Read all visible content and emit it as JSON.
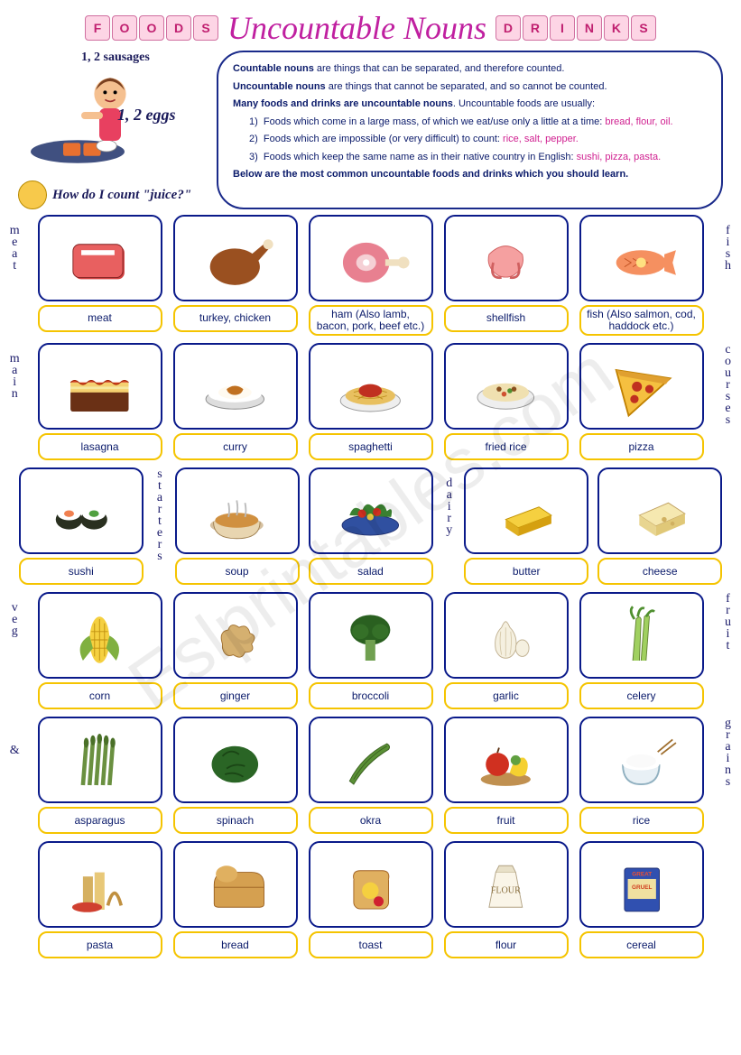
{
  "header": {
    "left_blocks": [
      "F",
      "O",
      "O",
      "D",
      "S"
    ],
    "title": "Uncountable Nouns",
    "right_blocks": [
      "D",
      "R",
      "I",
      "N",
      "K",
      "S"
    ]
  },
  "waitress": {
    "annot1": "1, 2 sausages",
    "annot2": "1, 2 eggs",
    "question": "How do I count \"juice?\""
  },
  "speech": {
    "line1_b": "Countable nouns",
    "line1": " are things that can be separated, and therefore counted.",
    "line2_b": "Uncountable nouns",
    "line2": " are things that cannot be separated, and so cannot be counted.",
    "line3_b": "Many foods and drinks are uncountable nouns",
    "line3": ". Uncountable foods are usually:",
    "item1": "Foods which come in a large mass, of which we eat/use only a little at a time: ",
    "item1_hl": "bread, flour, oil.",
    "item2": "Foods which are impossible (or very difficult) to count: ",
    "item2_hl": "rice, salt, pepper.",
    "item3": "Foods which keep the same name as in their native country in English: ",
    "item3_hl": "sushi, pizza, pasta.",
    "footer": "Below are the most common uncountable foods and drinks which you should learn."
  },
  "categories": {
    "r1_left": "meat",
    "r1_right": "fish",
    "r2_left": "main",
    "r2_right": "courses",
    "r3_mid1": "starters",
    "r3_mid2": "dairy",
    "r4_left": "veg",
    "r4_right": "fruit",
    "r5_amp": "&",
    "r5_right": "grains"
  },
  "rows": [
    [
      {
        "label": "meat",
        "icon": "meat"
      },
      {
        "label": "turkey, chicken",
        "icon": "chicken"
      },
      {
        "label": "ham (Also lamb, bacon, pork, beef etc.)",
        "icon": "ham"
      },
      {
        "label": "shellfish",
        "icon": "shellfish"
      },
      {
        "label": "fish (Also salmon, cod, haddock etc.)",
        "icon": "fish"
      }
    ],
    [
      {
        "label": "lasagna",
        "icon": "lasagna"
      },
      {
        "label": "curry",
        "icon": "curry"
      },
      {
        "label": "spaghetti",
        "icon": "spaghetti"
      },
      {
        "label": "fried rice",
        "icon": "friedrice"
      },
      {
        "label": "pizza",
        "icon": "pizza"
      }
    ],
    [
      {
        "label": "sushi",
        "icon": "sushi"
      },
      {
        "label": "soup",
        "icon": "soup"
      },
      {
        "label": "salad",
        "icon": "salad"
      },
      {
        "label": "butter",
        "icon": "butter"
      },
      {
        "label": "cheese",
        "icon": "cheese"
      }
    ],
    [
      {
        "label": "corn",
        "icon": "corn"
      },
      {
        "label": "ginger",
        "icon": "ginger"
      },
      {
        "label": "broccoli",
        "icon": "broccoli"
      },
      {
        "label": "garlic",
        "icon": "garlic"
      },
      {
        "label": "celery",
        "icon": "celery"
      }
    ],
    [
      {
        "label": "asparagus",
        "icon": "asparagus"
      },
      {
        "label": "spinach",
        "icon": "spinach"
      },
      {
        "label": "okra",
        "icon": "okra"
      },
      {
        "label": "fruit",
        "icon": "fruit"
      },
      {
        "label": "rice",
        "icon": "rice"
      }
    ],
    [
      {
        "label": "pasta",
        "icon": "pasta"
      },
      {
        "label": "bread",
        "icon": "bread"
      },
      {
        "label": "toast",
        "icon": "toast"
      },
      {
        "label": "flour",
        "icon": "flour"
      },
      {
        "label": "cereal",
        "icon": "cereal"
      }
    ]
  ],
  "colors": {
    "border_blue": "#0a1a8a",
    "border_yellow": "#f5c400",
    "text_blue": "#0a1a6a",
    "pink": "#d02090",
    "ice_bg": "#fdd5e5"
  },
  "watermark": "Eslprintables.com"
}
